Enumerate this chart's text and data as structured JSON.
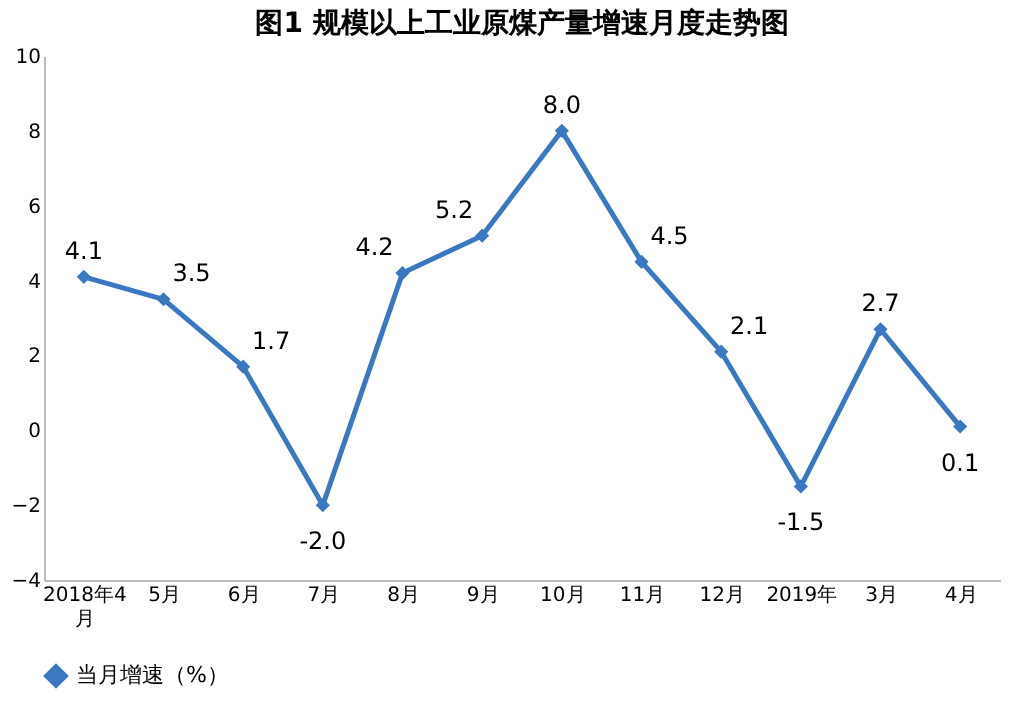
{
  "chart_data": {
    "type": "line",
    "title": "图1  规模以上工业原煤产量增速月度走势图",
    "categories": [
      "2018年4月",
      "5月",
      "6月",
      "7月",
      "8月",
      "9月",
      "10月",
      "11月",
      "12月",
      "2019年",
      "3月",
      "4月"
    ],
    "series": [
      {
        "name": "当月增速（%）",
        "color": "#3a78c2",
        "values": [
          4.1,
          3.5,
          1.7,
          -2.0,
          4.2,
          5.2,
          8.0,
          4.5,
          2.1,
          -1.5,
          2.7,
          0.1
        ],
        "value_labels": [
          "4.1",
          "3.5",
          "1.7",
          "-2.0",
          "4.2",
          "5.2",
          "8.0",
          "4.5",
          "2.1",
          "-1.5",
          "2.7",
          "0.1"
        ]
      }
    ],
    "ylim": [
      -4,
      10
    ],
    "yticks": [
      -4,
      -2,
      0,
      2,
      4,
      6,
      8,
      10
    ],
    "grid": false,
    "legend": "bottom",
    "marker": "diamond",
    "line_style": "solid"
  }
}
